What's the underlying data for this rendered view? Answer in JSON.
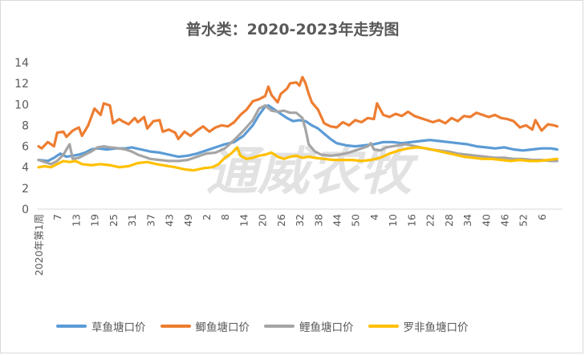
{
  "chart_data": {
    "type": "line",
    "title": "普水类：2020-2023年走势图",
    "xlabel": "",
    "ylabel": "",
    "ylim": [
      0,
      14
    ],
    "yticks": [
      0,
      2,
      4,
      6,
      8,
      10,
      12,
      14
    ],
    "grid": false,
    "legend": "bottom",
    "watermark": "通威农牧",
    "x_tick_labels": [
      "2020年第1周",
      "7",
      "13",
      "19",
      "25",
      "31",
      "37",
      "43",
      "49",
      "2",
      "8",
      "14",
      "20",
      "26",
      "32",
      "38",
      "44",
      "50",
      "4",
      "10",
      "16",
      "22",
      "28",
      "34",
      "40",
      "46",
      "52",
      "6"
    ],
    "series": [
      {
        "name": "草鱼塘口价",
        "color": "#5b9bd5",
        "points": [
          [
            1,
            4.7
          ],
          [
            4,
            4.6
          ],
          [
            6,
            4.9
          ],
          [
            8,
            5.3
          ],
          [
            10,
            5.0
          ],
          [
            12,
            5.1
          ],
          [
            14,
            5.2
          ],
          [
            16,
            5.4
          ],
          [
            18,
            5.7
          ],
          [
            20,
            5.8
          ],
          [
            23,
            5.7
          ],
          [
            26,
            5.8
          ],
          [
            29,
            5.8
          ],
          [
            31,
            5.9
          ],
          [
            34,
            5.7
          ],
          [
            37,
            5.5
          ],
          [
            40,
            5.4
          ],
          [
            43,
            5.2
          ],
          [
            46,
            5.0
          ],
          [
            49,
            5.1
          ],
          [
            52,
            5.3
          ],
          [
            55,
            5.6
          ],
          [
            58,
            5.9
          ],
          [
            61,
            6.2
          ],
          [
            64,
            6.4
          ],
          [
            67,
            7.0
          ],
          [
            70,
            8.0
          ],
          [
            72,
            9.0
          ],
          [
            74,
            9.8
          ],
          [
            75,
            9.9
          ],
          [
            77,
            9.5
          ],
          [
            79,
            9.1
          ],
          [
            81,
            8.7
          ],
          [
            83,
            8.4
          ],
          [
            85,
            8.5
          ],
          [
            87,
            8.4
          ],
          [
            89,
            8.0
          ],
          [
            91,
            7.7
          ],
          [
            93,
            7.2
          ],
          [
            95,
            6.7
          ],
          [
            97,
            6.3
          ],
          [
            100,
            6.1
          ],
          [
            103,
            6.0
          ],
          [
            106,
            6.1
          ],
          [
            109,
            6.2
          ],
          [
            112,
            6.4
          ],
          [
            115,
            6.4
          ],
          [
            118,
            6.3
          ],
          [
            121,
            6.4
          ],
          [
            124,
            6.5
          ],
          [
            127,
            6.6
          ],
          [
            130,
            6.5
          ],
          [
            133,
            6.4
          ],
          [
            136,
            6.3
          ],
          [
            139,
            6.2
          ],
          [
            142,
            6.0
          ],
          [
            145,
            5.9
          ],
          [
            148,
            5.8
          ],
          [
            151,
            5.9
          ],
          [
            154,
            5.7
          ],
          [
            157,
            5.6
          ],
          [
            160,
            5.7
          ],
          [
            163,
            5.8
          ],
          [
            166,
            5.8
          ],
          [
            168,
            5.7
          ]
        ]
      },
      {
        "name": "鲫鱼塘口价",
        "color": "#ed7d31",
        "points": [
          [
            1,
            6.0
          ],
          [
            2,
            5.8
          ],
          [
            4,
            6.4
          ],
          [
            6,
            6.0
          ],
          [
            7,
            7.3
          ],
          [
            9,
            7.4
          ],
          [
            10,
            6.9
          ],
          [
            12,
            7.5
          ],
          [
            14,
            7.8
          ],
          [
            15,
            7.0
          ],
          [
            17,
            8.0
          ],
          [
            19,
            9.6
          ],
          [
            21,
            9.0
          ],
          [
            22,
            10.1
          ],
          [
            24,
            9.9
          ],
          [
            25,
            8.2
          ],
          [
            27,
            8.6
          ],
          [
            28,
            8.4
          ],
          [
            30,
            8.1
          ],
          [
            32,
            8.7
          ],
          [
            33,
            8.3
          ],
          [
            35,
            8.8
          ],
          [
            36,
            7.7
          ],
          [
            38,
            8.4
          ],
          [
            40,
            8.5
          ],
          [
            41,
            7.4
          ],
          [
            43,
            7.6
          ],
          [
            45,
            7.3
          ],
          [
            46,
            6.7
          ],
          [
            48,
            7.4
          ],
          [
            50,
            7.0
          ],
          [
            52,
            7.5
          ],
          [
            54,
            7.9
          ],
          [
            56,
            7.4
          ],
          [
            58,
            7.8
          ],
          [
            60,
            8.0
          ],
          [
            62,
            7.9
          ],
          [
            64,
            8.3
          ],
          [
            66,
            9.0
          ],
          [
            68,
            9.5
          ],
          [
            70,
            10.3
          ],
          [
            72,
            10.5
          ],
          [
            74,
            10.8
          ],
          [
            75,
            11.7
          ],
          [
            76,
            10.9
          ],
          [
            78,
            10.2
          ],
          [
            79,
            11.0
          ],
          [
            81,
            11.5
          ],
          [
            82,
            12.0
          ],
          [
            84,
            12.1
          ],
          [
            85,
            11.8
          ],
          [
            86,
            12.6
          ],
          [
            87,
            12.0
          ],
          [
            88,
            11.0
          ],
          [
            89,
            10.2
          ],
          [
            91,
            9.5
          ],
          [
            93,
            8.2
          ],
          [
            95,
            7.9
          ],
          [
            97,
            7.8
          ],
          [
            99,
            8.3
          ],
          [
            101,
            8.0
          ],
          [
            103,
            8.5
          ],
          [
            105,
            8.3
          ],
          [
            107,
            8.7
          ],
          [
            109,
            8.6
          ],
          [
            110,
            10.1
          ],
          [
            112,
            9.0
          ],
          [
            114,
            8.8
          ],
          [
            116,
            9.1
          ],
          [
            118,
            8.9
          ],
          [
            120,
            9.3
          ],
          [
            122,
            8.9
          ],
          [
            124,
            8.7
          ],
          [
            126,
            8.5
          ],
          [
            128,
            8.3
          ],
          [
            130,
            8.5
          ],
          [
            132,
            8.2
          ],
          [
            134,
            8.7
          ],
          [
            136,
            8.4
          ],
          [
            138,
            8.9
          ],
          [
            140,
            8.8
          ],
          [
            142,
            9.2
          ],
          [
            144,
            9.0
          ],
          [
            146,
            8.8
          ],
          [
            148,
            9.0
          ],
          [
            150,
            8.7
          ],
          [
            152,
            8.6
          ],
          [
            154,
            8.4
          ],
          [
            156,
            7.8
          ],
          [
            158,
            8.0
          ],
          [
            160,
            7.6
          ],
          [
            161,
            8.5
          ],
          [
            163,
            7.5
          ],
          [
            165,
            8.1
          ],
          [
            167,
            8.0
          ],
          [
            168,
            7.9
          ]
        ]
      },
      {
        "name": "鲤鱼塘口价",
        "color": "#a5a5a5",
        "points": [
          [
            1,
            4.7
          ],
          [
            3,
            4.5
          ],
          [
            5,
            4.3
          ],
          [
            7,
            4.6
          ],
          [
            9,
            5.2
          ],
          [
            11,
            6.2
          ],
          [
            12,
            4.8
          ],
          [
            14,
            4.9
          ],
          [
            16,
            5.2
          ],
          [
            18,
            5.5
          ],
          [
            20,
            5.9
          ],
          [
            22,
            6.0
          ],
          [
            24,
            5.9
          ],
          [
            27,
            5.8
          ],
          [
            29,
            5.7
          ],
          [
            31,
            5.5
          ],
          [
            33,
            5.2
          ],
          [
            35,
            5.0
          ],
          [
            37,
            4.8
          ],
          [
            40,
            4.7
          ],
          [
            43,
            4.6
          ],
          [
            46,
            4.6
          ],
          [
            49,
            4.7
          ],
          [
            52,
            5.0
          ],
          [
            55,
            5.3
          ],
          [
            58,
            5.4
          ],
          [
            61,
            5.8
          ],
          [
            64,
            6.6
          ],
          [
            67,
            7.5
          ],
          [
            70,
            8.5
          ],
          [
            72,
            9.6
          ],
          [
            74,
            9.9
          ],
          [
            76,
            9.4
          ],
          [
            78,
            9.3
          ],
          [
            80,
            9.4
          ],
          [
            82,
            9.2
          ],
          [
            84,
            9.2
          ],
          [
            86,
            8.7
          ],
          [
            87,
            7.6
          ],
          [
            88,
            6.2
          ],
          [
            90,
            5.5
          ],
          [
            92,
            5.2
          ],
          [
            95,
            5.1
          ],
          [
            98,
            5.2
          ],
          [
            101,
            5.4
          ],
          [
            103,
            5.6
          ],
          [
            105,
            5.8
          ],
          [
            107,
            6.0
          ],
          [
            108,
            6.3
          ],
          [
            109,
            5.7
          ],
          [
            111,
            5.6
          ],
          [
            113,
            5.9
          ],
          [
            115,
            6.0
          ],
          [
            117,
            6.1
          ],
          [
            119,
            6.2
          ],
          [
            121,
            6.1
          ],
          [
            124,
            5.9
          ],
          [
            127,
            5.7
          ],
          [
            130,
            5.6
          ],
          [
            133,
            5.5
          ],
          [
            136,
            5.3
          ],
          [
            139,
            5.2
          ],
          [
            142,
            5.1
          ],
          [
            145,
            5.0
          ],
          [
            148,
            4.9
          ],
          [
            151,
            4.9
          ],
          [
            154,
            4.8
          ],
          [
            157,
            4.8
          ],
          [
            160,
            4.7
          ],
          [
            163,
            4.7
          ],
          [
            166,
            4.6
          ],
          [
            168,
            4.6
          ]
        ]
      },
      {
        "name": "罗非鱼塘口价",
        "color": "#ffc000",
        "points": [
          [
            1,
            4.0
          ],
          [
            3,
            4.1
          ],
          [
            5,
            4.0
          ],
          [
            7,
            4.3
          ],
          [
            9,
            4.6
          ],
          [
            11,
            4.5
          ],
          [
            13,
            4.6
          ],
          [
            15,
            4.3
          ],
          [
            18,
            4.2
          ],
          [
            21,
            4.3
          ],
          [
            24,
            4.2
          ],
          [
            27,
            4.0
          ],
          [
            30,
            4.1
          ],
          [
            33,
            4.4
          ],
          [
            36,
            4.5
          ],
          [
            39,
            4.3
          ],
          [
            41,
            4.2
          ],
          [
            43,
            4.1
          ],
          [
            45,
            4.0
          ],
          [
            48,
            3.8
          ],
          [
            51,
            3.7
          ],
          [
            54,
            3.9
          ],
          [
            57,
            4.0
          ],
          [
            59,
            4.3
          ],
          [
            61,
            4.9
          ],
          [
            63,
            5.3
          ],
          [
            65,
            5.9
          ],
          [
            66,
            5.1
          ],
          [
            68,
            4.8
          ],
          [
            70,
            4.9
          ],
          [
            72,
            5.1
          ],
          [
            74,
            5.2
          ],
          [
            76,
            5.4
          ],
          [
            78,
            5.0
          ],
          [
            80,
            4.8
          ],
          [
            82,
            5.0
          ],
          [
            84,
            5.1
          ],
          [
            86,
            4.9
          ],
          [
            88,
            5.0
          ],
          [
            90,
            4.9
          ],
          [
            93,
            4.8
          ],
          [
            96,
            4.7
          ],
          [
            99,
            4.7
          ],
          [
            102,
            4.7
          ],
          [
            105,
            4.6
          ],
          [
            108,
            4.7
          ],
          [
            111,
            4.9
          ],
          [
            114,
            5.3
          ],
          [
            117,
            5.6
          ],
          [
            120,
            5.8
          ],
          [
            123,
            5.9
          ],
          [
            126,
            5.8
          ],
          [
            129,
            5.6
          ],
          [
            132,
            5.4
          ],
          [
            135,
            5.2
          ],
          [
            138,
            5.0
          ],
          [
            141,
            4.9
          ],
          [
            144,
            4.8
          ],
          [
            147,
            4.8
          ],
          [
            150,
            4.7
          ],
          [
            153,
            4.6
          ],
          [
            156,
            4.7
          ],
          [
            159,
            4.6
          ],
          [
            162,
            4.6
          ],
          [
            165,
            4.7
          ],
          [
            168,
            4.8
          ]
        ]
      }
    ]
  }
}
